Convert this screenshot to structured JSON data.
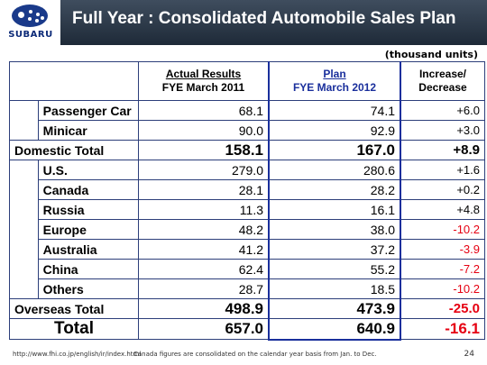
{
  "header": {
    "logo": "SUBARU",
    "title": "Full Year : Consolidated Automobile Sales Plan"
  },
  "unit": "(thousand units)",
  "columns": {
    "actual_line1": "Actual Results",
    "actual_line2": "FYE March 2011",
    "plan_line1": "Plan",
    "plan_line2": "FYE March 2012",
    "inc_line1": "Increase/",
    "inc_line2": "Decrease"
  },
  "rows": [
    {
      "label": "Passenger Car",
      "actual": "68.1",
      "plan": "74.1",
      "change": "+6.0"
    },
    {
      "label": "Minicar",
      "actual": "90.0",
      "plan": "92.9",
      "change": "+3.0"
    },
    {
      "label": "Domestic Total",
      "actual": "158.1",
      "plan": "167.0",
      "change": "+8.9"
    },
    {
      "label": "U.S.",
      "actual": "279.0",
      "plan": "280.6",
      "change": "+1.6"
    },
    {
      "label": "Canada",
      "actual": "28.1",
      "plan": "28.2",
      "change": "+0.2"
    },
    {
      "label": "Russia",
      "actual": "11.3",
      "plan": "16.1",
      "change": "+4.8"
    },
    {
      "label": "Europe",
      "actual": "48.2",
      "plan": "38.0",
      "change": "-10.2"
    },
    {
      "label": "Australia",
      "actual": "41.2",
      "plan": "37.2",
      "change": "-3.9"
    },
    {
      "label": "China",
      "actual": "62.4",
      "plan": "55.2",
      "change": "-7.2"
    },
    {
      "label": "Others",
      "actual": "28.7",
      "plan": "18.5",
      "change": "-10.2"
    },
    {
      "label": "Overseas Total",
      "actual": "498.9",
      "plan": "473.9",
      "change": "-25.0"
    },
    {
      "label": "Total",
      "actual": "657.0",
      "plan": "640.9",
      "change": "-16.1"
    }
  ],
  "footer": {
    "url": "http://www.fhi.co.jp/english/ir/index.html",
    "note": "Canada figures are consolidated on the calendar year basis from Jan. to Dec.",
    "page": "24"
  },
  "colors": {
    "header_bg": "#2b3747",
    "negative": "#e60012",
    "plan_border": "#1a2f9c"
  }
}
